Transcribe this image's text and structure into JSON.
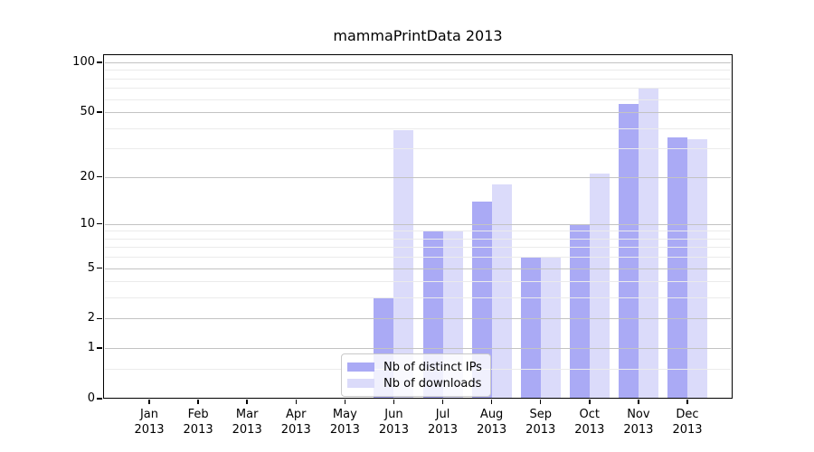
{
  "chart_data": {
    "type": "bar",
    "title": "mammaPrintData 2013",
    "categories": [
      "Jan 2013",
      "Feb 2013",
      "Mar 2013",
      "Apr 2013",
      "May 2013",
      "Jun 2013",
      "Jul 2013",
      "Aug 2013",
      "Sep 2013",
      "Oct 2013",
      "Nov 2013",
      "Dec 2013"
    ],
    "x_tick_months": [
      "Jan",
      "Feb",
      "Mar",
      "Apr",
      "May",
      "Jun",
      "Jul",
      "Aug",
      "Sep",
      "Oct",
      "Nov",
      "Dec"
    ],
    "x_tick_year": "2013",
    "series": [
      {
        "name": "Nb of distinct IPs",
        "color": "#aaaaf5",
        "values": [
          0,
          0,
          0,
          0,
          0,
          3,
          9,
          14,
          6,
          10,
          56,
          35
        ]
      },
      {
        "name": "Nb of downloads",
        "color": "#dbdbfa",
        "values": [
          0,
          0,
          0,
          0,
          0,
          39,
          9,
          18,
          6,
          21,
          70,
          34
        ]
      }
    ],
    "y_axis": {
      "scale": "log1p",
      "ticks": [
        0,
        1,
        2,
        5,
        10,
        20,
        50,
        100
      ],
      "minor_gridlines": [
        0.5,
        3,
        4,
        6,
        7,
        8,
        9,
        30,
        40,
        60,
        70,
        80,
        90
      ],
      "max": 112
    },
    "grid": true,
    "legend_position": "lower-center",
    "colors": {
      "grid_major": "#c3c3c3",
      "grid_minor": "#ebebeb",
      "axis": "#000000"
    }
  }
}
